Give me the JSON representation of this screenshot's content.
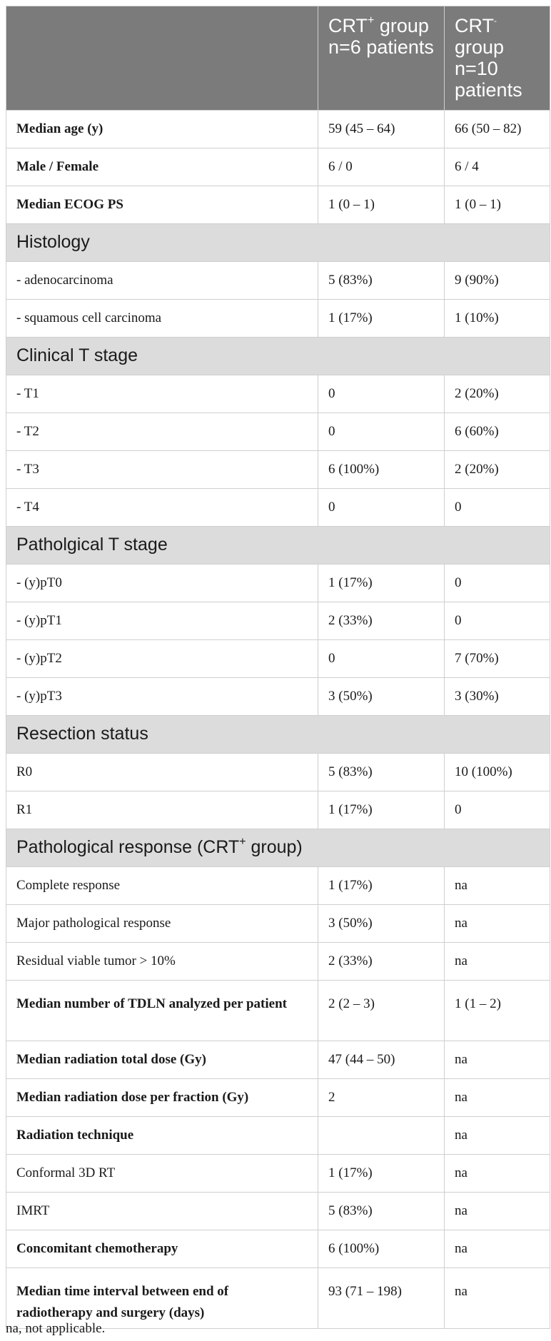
{
  "header": {
    "col1": "",
    "col2": {
      "pre": "CRT",
      "sup": "+",
      "post": " group n=6 patients"
    },
    "col3": {
      "pre": "CRT",
      "sup": "-",
      "post": " group n=10 patients"
    }
  },
  "rows": {
    "r1": {
      "label": "Median age (y)",
      "crt_pos": "59 (45 – 64)",
      "crt_neg": "66 (50 – 82)"
    },
    "r2": {
      "label": "Male / Female",
      "crt_pos": "6 / 0",
      "crt_neg": "6 / 4"
    },
    "r3": {
      "label": "Median ECOG PS",
      "crt_pos": "1 (0 – 1)",
      "crt_neg": "1 (0 – 1)"
    },
    "s1": {
      "label": "Histology"
    },
    "r4": {
      "label": "- adenocarcinoma",
      "crt_pos": "5 (83%)",
      "crt_neg": "9 (90%)"
    },
    "r5": {
      "label": "- squamous cell carcinoma",
      "crt_pos": "1 (17%)",
      "crt_neg": "1 (10%)"
    },
    "s2": {
      "label": "Clinical T stage"
    },
    "r6": {
      "label": "- T1",
      "crt_pos": "0",
      "crt_neg": "2 (20%)"
    },
    "r7": {
      "label": "- T2",
      "crt_pos": "0",
      "crt_neg": "6 (60%)"
    },
    "r8": {
      "label": "- T3",
      "crt_pos": "6 (100%)",
      "crt_neg": "2 (20%)"
    },
    "r9": {
      "label": "- T4",
      "crt_pos": "0",
      "crt_neg": "0"
    },
    "s3": {
      "label": "Patholgical T stage"
    },
    "r10": {
      "label": "- (y)pT0",
      "crt_pos": "1 (17%)",
      "crt_neg": "0"
    },
    "r11": {
      "label": "- (y)pT1",
      "crt_pos": "2 (33%)",
      "crt_neg": "0"
    },
    "r12": {
      "label": "- (y)pT2",
      "crt_pos": "0",
      "crt_neg": "7 (70%)"
    },
    "r13": {
      "label": "- (y)pT3",
      "crt_pos": "3 (50%)",
      "crt_neg": "3 (30%)"
    },
    "s4": {
      "label": "Resection status"
    },
    "r14": {
      "label": "R0",
      "crt_pos": "5 (83%)",
      "crt_neg": "10 (100%)"
    },
    "r15": {
      "label": "R1",
      "crt_pos": "1 (17%)",
      "crt_neg": "0"
    },
    "s5": {
      "pre": "Pathological response (CRT",
      "sup": "+",
      "post": " group)"
    },
    "r16": {
      "label": "Complete response",
      "crt_pos": "1 (17%)",
      "crt_neg": "na"
    },
    "r17": {
      "label": "Major pathological response",
      "crt_pos": "3 (50%)",
      "crt_neg": "na"
    },
    "r18": {
      "label": "Residual viable tumor > 10%",
      "crt_pos": "2 (33%)",
      "crt_neg": "na"
    },
    "r19": {
      "label": "Median number of TDLN analyzed per patient",
      "crt_pos": "2 (2 – 3)",
      "crt_neg": "1 (1 – 2)"
    },
    "r20": {
      "label": "Median radiation total dose (Gy)",
      "crt_pos": "47 (44 – 50)",
      "crt_neg": "na"
    },
    "r21": {
      "label": "Median radiation dose per fraction (Gy)",
      "crt_pos": "2",
      "crt_neg": "na"
    },
    "r22": {
      "label": "Radiation technique",
      "crt_pos": "",
      "crt_neg": "na"
    },
    "r23": {
      "label": "Conformal 3D RT",
      "crt_pos": "1 (17%)",
      "crt_neg": "na"
    },
    "r24": {
      "label": "IMRT",
      "crt_pos": "5 (83%)",
      "crt_neg": "na"
    },
    "r25": {
      "label": "Concomitant chemotherapy",
      "crt_pos": "6 (100%)",
      "crt_neg": "na"
    },
    "r26": {
      "label": "Median time interval between end of radiotherapy and surgery (days)",
      "crt_pos": "93 (71 – 198)",
      "crt_neg": "na"
    }
  },
  "footnote": "na, not applicable.",
  "colors": {
    "header_bg": "#7b7b7b",
    "section_bg": "#dcdcdc",
    "border": "#cfcfcf"
  }
}
